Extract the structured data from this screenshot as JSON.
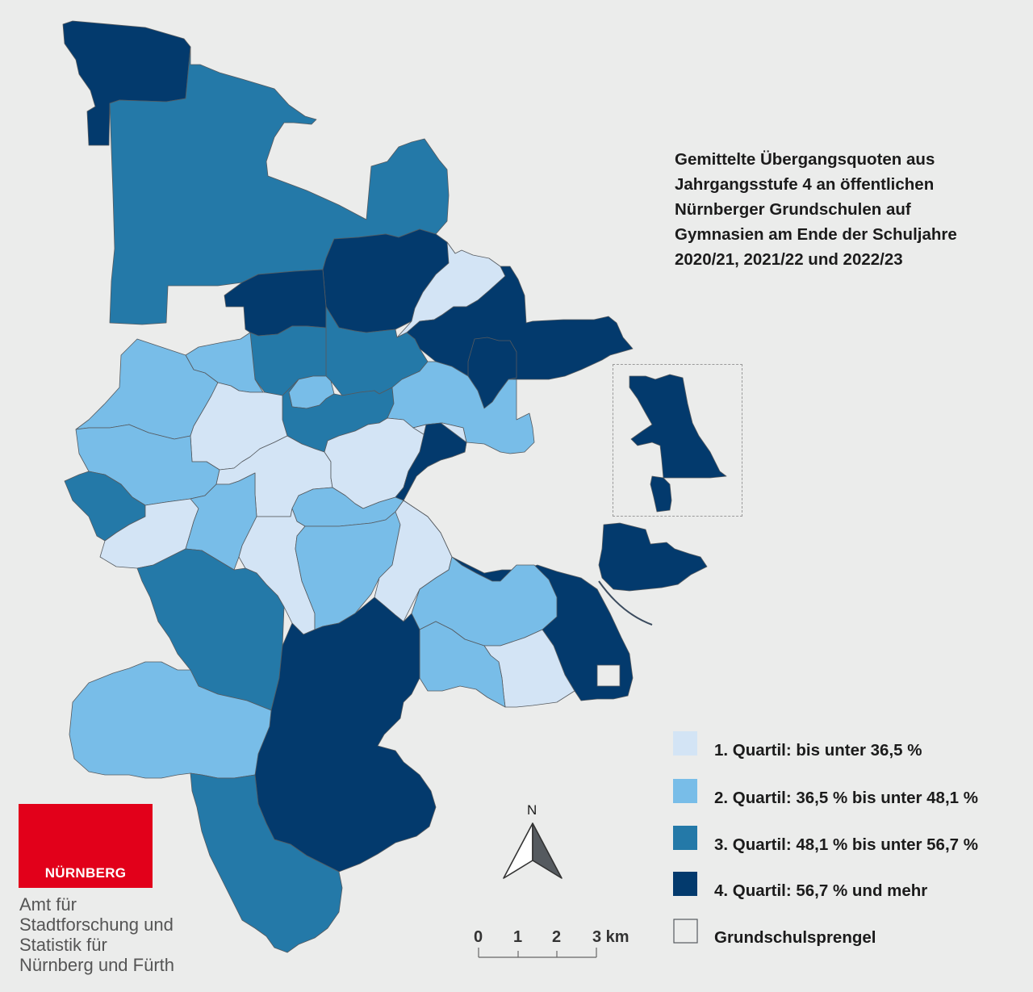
{
  "title_lines": [
    "Gemittelte Übergangsquoten aus",
    "Jahrgangsstufe 4 an öffentlichen",
    "Nürnberger Grundschulen auf",
    "Gymnasien am Ende der Schuljahre",
    "2020/21, 2021/22 und 2022/23"
  ],
  "colors": {
    "q1": "#d3e4f5",
    "q2": "#78bde8",
    "q3": "#2479a8",
    "q4": "#033a6d",
    "background": "#ebeceb",
    "logo_red": "#e2001a"
  },
  "legend": [
    {
      "label": "1. Quartil: bis unter 36,5 %",
      "color": "#d3e4f5"
    },
    {
      "label": "2. Quartil: 36,5 % bis unter 48,1 %",
      "color": "#78bde8"
    },
    {
      "label": "3. Quartil: 48,1 % bis unter 56,7 %",
      "color": "#2479a8"
    },
    {
      "label": "4. Quartil: 56,7 % und mehr",
      "color": "#033a6d"
    },
    {
      "label": "Grundschulsprengel",
      "color": "#ebeceb"
    }
  ],
  "scalebar": {
    "ticks": [
      "0",
      "1",
      "2",
      "3 km"
    ]
  },
  "north_arrow": {
    "label": "N",
    "icon": "north-arrow-icon"
  },
  "logo": {
    "text": "NÜRNBERG",
    "icon": "nuernberg-castle-skyline-icon"
  },
  "organization_lines": [
    "Amt für",
    "Stadtforschung und",
    "Statistik für",
    "Nürnberg und Fürth"
  ]
}
